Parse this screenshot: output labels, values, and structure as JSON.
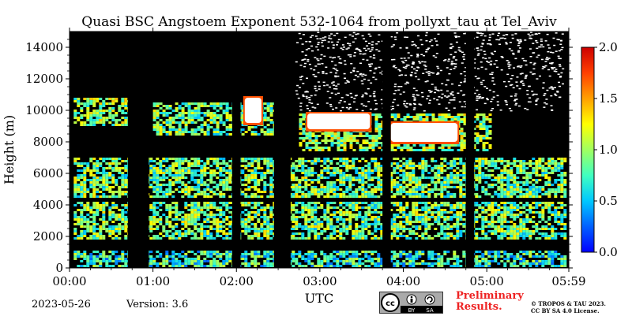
{
  "chart_data": {
    "type": "heatmap",
    "title": "Quasi BSC Angstoem Exponent 532-1064 from pollyxt_tau at Tel_Aviv",
    "xlabel": "UTC",
    "ylabel": "Height (m)",
    "x_ticks": [
      "00:00",
      "01:00",
      "02:00",
      "03:00",
      "04:00",
      "05:00",
      "05:59"
    ],
    "x_tick_hours": [
      0,
      1,
      2,
      3,
      4,
      5,
      5.983
    ],
    "xlim_hours": [
      0,
      5.983
    ],
    "y_ticks": [
      0,
      2000,
      4000,
      6000,
      8000,
      10000,
      12000,
      14000
    ],
    "ylim": [
      0,
      15000
    ],
    "colorbar": {
      "ticks": [
        "0.0",
        "0.5",
        "1.0",
        "1.5",
        "2.0"
      ],
      "tick_values": [
        0,
        0.5,
        1.0,
        1.5,
        2.0
      ],
      "range": [
        0,
        2.0
      ],
      "colormap": "jet"
    },
    "background_color": "#000000",
    "no_data_color": "#ffffff",
    "layers": [
      {
        "x_start_hours": 0.05,
        "x_end_hours": 5.95,
        "y_bottom": 100,
        "y_top": 1100,
        "value": 0.7
      },
      {
        "x_start_hours": 0.05,
        "x_end_hours": 5.95,
        "y_bottom": 1800,
        "y_top": 4200,
        "value": 0.9
      },
      {
        "x_start_hours": 0.05,
        "x_end_hours": 5.95,
        "y_bottom": 4500,
        "y_top": 7000,
        "value": 0.9
      },
      {
        "x_start_hours": 0.05,
        "x_end_hours": 0.7,
        "y_bottom": 9000,
        "y_top": 10800,
        "value": 1.0
      },
      {
        "x_start_hours": 1.0,
        "x_end_hours": 2.5,
        "y_bottom": 8500,
        "y_top": 10500,
        "value": 0.9
      },
      {
        "x_start_hours": 2.75,
        "x_end_hours": 5.05,
        "y_bottom": 7500,
        "y_top": 9800,
        "value": 1.0
      }
    ],
    "gaps_hours": [
      [
        0.7,
        0.95
      ],
      [
        1.95,
        2.05
      ],
      [
        2.45,
        2.65
      ],
      [
        3.75,
        3.85
      ],
      [
        4.75,
        4.85
      ]
    ],
    "white_regions": [
      {
        "x_start_hours": 2.1,
        "x_end_hours": 2.3,
        "y_bottom": 9200,
        "y_top": 10800
      },
      {
        "x_start_hours": 2.85,
        "x_end_hours": 3.6,
        "y_bottom": 8800,
        "y_top": 9800
      },
      {
        "x_start_hours": 3.85,
        "x_end_hours": 4.65,
        "y_bottom": 8000,
        "y_top": 9200
      }
    ],
    "noise_region": {
      "x_start_hours": 2.7,
      "x_end_hours": 5.9,
      "y_bottom": 10000,
      "y_top": 15000
    }
  },
  "footer": {
    "date": "2023-05-26",
    "version": "Version: 3.6",
    "preliminary_line1": "Preliminary",
    "preliminary_line2": "Results.",
    "copyright_line1": "© TROPOS & TAU 2023.",
    "copyright_line2": "CC BY SA 4.0 License.",
    "license_badge": {
      "cc": "cc",
      "by": "BY",
      "sa": "SA"
    }
  }
}
